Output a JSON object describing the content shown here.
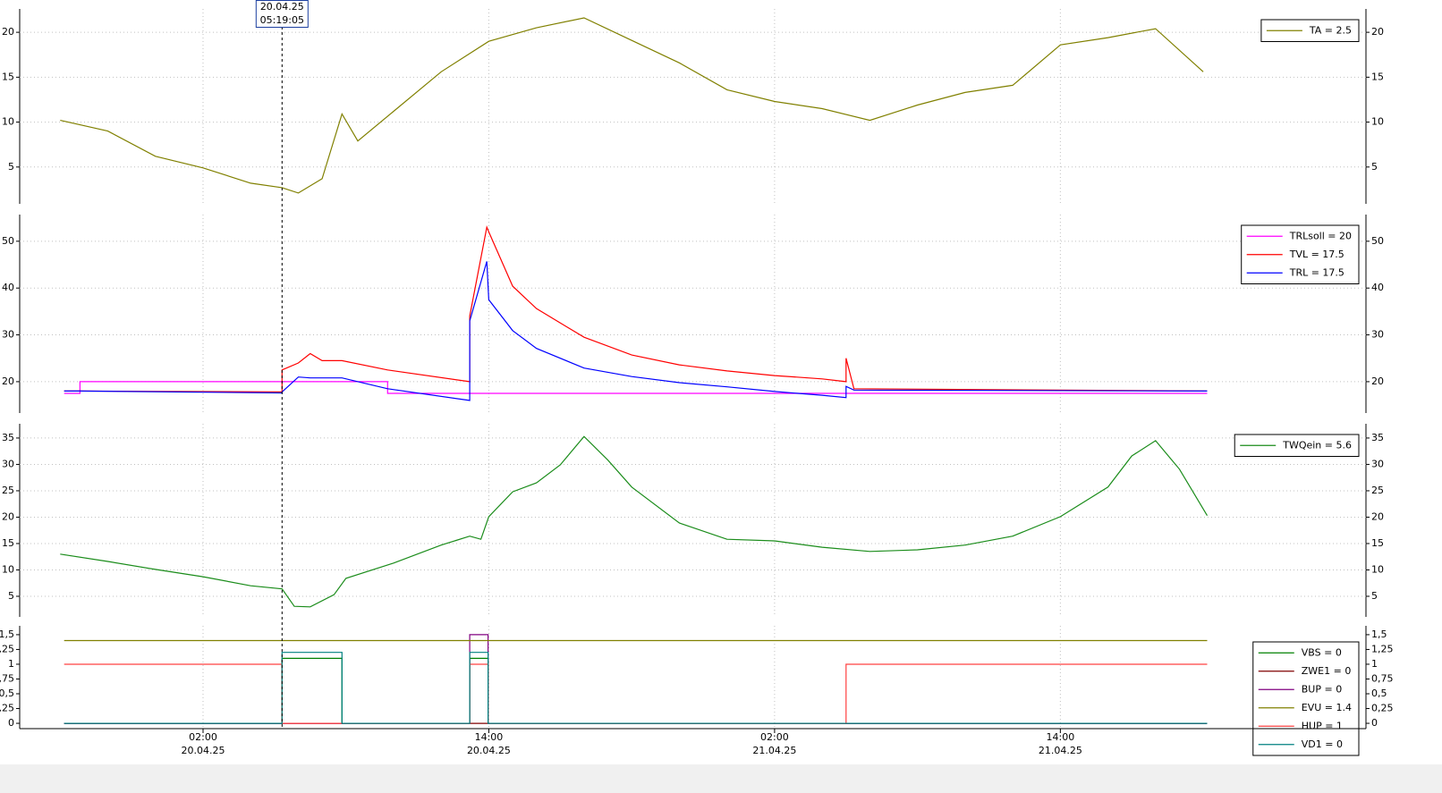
{
  "chart_data": [
    {
      "type": "line",
      "ylim": [
        0.9,
        22.6
      ],
      "yticks": [
        5,
        10,
        15,
        20
      ],
      "grid": true,
      "legend": "upper right",
      "x": [
        "2025-04-19T20:00",
        "2025-04-19T22:00",
        "2025-04-20T00:00",
        "2025-04-20T02:00",
        "2025-04-20T04:00",
        "2025-04-20T05:19",
        "2025-04-20T06:00",
        "2025-04-20T07:00",
        "2025-04-20T07:50",
        "2025-04-20T08:30",
        "2025-04-20T10:00",
        "2025-04-20T12:00",
        "2025-04-20T14:00",
        "2025-04-20T16:00",
        "2025-04-20T18:00",
        "2025-04-20T20:00",
        "2025-04-20T22:00",
        "2025-04-21T00:00",
        "2025-04-21T02:00",
        "2025-04-21T04:00",
        "2025-04-21T06:00",
        "2025-04-21T08:00",
        "2025-04-21T10:00",
        "2025-04-21T12:00",
        "2025-04-21T14:00",
        "2025-04-21T16:00",
        "2025-04-21T18:00",
        "2025-04-21T20:00"
      ],
      "series": [
        {
          "name": "TA = 2.5",
          "color": "#808000",
          "values": [
            10.2,
            9.0,
            6.2,
            4.9,
            3.2,
            2.7,
            2.1,
            3.7,
            10.9,
            7.9,
            11.2,
            15.6,
            19.0,
            20.5,
            21.6,
            19.1,
            16.6,
            13.6,
            12.3,
            11.5,
            10.2,
            11.9,
            13.3,
            14.1,
            18.6,
            19.4,
            20.4,
            15.6
          ]
        }
      ]
    },
    {
      "type": "line",
      "ylim": [
        13.3,
        55.7
      ],
      "yticks": [
        20,
        30,
        40,
        50
      ],
      "grid": true,
      "legend": "upper right",
      "x": [
        "2025-04-19T20:10",
        "2025-04-19T20:50",
        "2025-04-19T20:50",
        "2025-04-20T05:19",
        "2025-04-20T05:19",
        "2025-04-20T06:00",
        "2025-04-20T06:30",
        "2025-04-20T07:00",
        "2025-04-20T07:50",
        "2025-04-20T09:45",
        "2025-04-20T09:45",
        "2025-04-20T13:12",
        "2025-04-20T13:12",
        "2025-04-20T13:55",
        "2025-04-20T14:00",
        "2025-04-20T15:00",
        "2025-04-20T16:00",
        "2025-04-20T18:00",
        "2025-04-20T20:00",
        "2025-04-20T22:00",
        "2025-04-21T00:00",
        "2025-04-21T02:00",
        "2025-04-21T04:00",
        "2025-04-21T05:00",
        "2025-04-21T05:00",
        "2025-04-21T05:20",
        "2025-04-21T20:10"
      ],
      "series": [
        {
          "name": "TRLsoll = 20",
          "color": "#ff00ff",
          "values": [
            17.5,
            17.5,
            20,
            20,
            20,
            20,
            20,
            20,
            20,
            20,
            17.5,
            17.5,
            17.5,
            17.5,
            17.5,
            17.5,
            17.5,
            17.5,
            17.5,
            17.5,
            17.5,
            17.5,
            17.5,
            17.5,
            17.5,
            17.5,
            17.5
          ]
        },
        {
          "name": "TVL = 17.5",
          "color": "#ff0000",
          "values": [
            18,
            18,
            18,
            17.8,
            22.5,
            24,
            26,
            24.5,
            24.5,
            22.5,
            22.5,
            20,
            34,
            53,
            52,
            40.4,
            35.6,
            29.5,
            25.7,
            23.6,
            22.3,
            21.3,
            20.6,
            20,
            25,
            18.5,
            18
          ]
        },
        {
          "name": "TRL = 17.5",
          "color": "#0000ff",
          "values": [
            18,
            18,
            18,
            17.6,
            17.8,
            21,
            20.8,
            20.8,
            20.8,
            18.5,
            18.5,
            16,
            33,
            45.7,
            37.5,
            30.9,
            27.1,
            22.9,
            21.1,
            19.8,
            18.9,
            17.9,
            17.1,
            16.6,
            19,
            18.2,
            18
          ]
        }
      ]
    },
    {
      "type": "line",
      "ylim": [
        1.1,
        37.7
      ],
      "yticks": [
        5,
        10,
        15,
        20,
        25,
        30,
        35
      ],
      "grid": true,
      "legend": "upper right",
      "x": [
        "2025-04-19T20:00",
        "2025-04-19T22:00",
        "2025-04-20T00:00",
        "2025-04-20T02:00",
        "2025-04-20T04:00",
        "2025-04-20T05:19",
        "2025-04-20T05:50",
        "2025-04-20T06:30",
        "2025-04-20T07:30",
        "2025-04-20T08:00",
        "2025-04-20T10:00",
        "2025-04-20T12:00",
        "2025-04-20T13:12",
        "2025-04-20T13:40",
        "2025-04-20T14:00",
        "2025-04-20T15:00",
        "2025-04-20T16:00",
        "2025-04-20T17:00",
        "2025-04-20T18:00",
        "2025-04-20T19:00",
        "2025-04-20T20:00",
        "2025-04-20T22:00",
        "2025-04-21T00:00",
        "2025-04-21T02:00",
        "2025-04-21T04:00",
        "2025-04-21T06:00",
        "2025-04-21T08:00",
        "2025-04-21T10:00",
        "2025-04-21T12:00",
        "2025-04-21T14:00",
        "2025-04-21T16:00",
        "2025-04-21T17:00",
        "2025-04-21T18:00",
        "2025-04-21T19:00",
        "2025-04-21T20:10"
      ],
      "series": [
        {
          "name": "TWQein = 5.6",
          "color": "#1a8c1a",
          "values": [
            13.0,
            11.6,
            10.1,
            8.7,
            7.0,
            6.4,
            3.1,
            3.0,
            5.3,
            8.4,
            11.3,
            14.7,
            16.4,
            15.8,
            20.1,
            24.8,
            26.5,
            29.9,
            35.3,
            30.8,
            25.7,
            18.9,
            15.8,
            15.5,
            14.3,
            13.5,
            13.8,
            14.7,
            16.4,
            20.1,
            25.7,
            31.6,
            34.5,
            29.1,
            20.3
          ]
        }
      ]
    },
    {
      "type": "line",
      "ylim": [
        -0.09,
        1.65
      ],
      "yticks": [
        {
          "value": 0,
          "label": "0"
        },
        {
          "value": 0.25,
          "label": "0,25"
        },
        {
          "value": 0.5,
          "label": "0,5"
        },
        {
          "value": 0.75,
          "label": "0,75"
        },
        {
          "value": 1,
          "label": "1"
        },
        {
          "value": 1.25,
          "label": "1,25"
        },
        {
          "value": 1.5,
          "label": "1,5"
        }
      ],
      "grid": false,
      "legend": "lower right",
      "xlim": [
        "2025-04-19T18:18",
        "2025-04-22T02:50"
      ],
      "xticks": [
        {
          "value": "2025-04-20T02:00",
          "label": [
            "02:00",
            "20.04.25"
          ]
        },
        {
          "value": "2025-04-20T14:00",
          "label": [
            "14:00",
            "20.04.25"
          ]
        },
        {
          "value": "2025-04-21T02:00",
          "label": [
            "02:00",
            "21.04.25"
          ]
        },
        {
          "value": "2025-04-21T14:00",
          "label": [
            "14:00",
            "21.04.25"
          ]
        }
      ],
      "x": [
        "2025-04-19T20:10",
        "2025-04-20T05:19",
        "2025-04-20T05:19",
        "2025-04-20T07:50",
        "2025-04-20T07:50",
        "2025-04-20T13:12",
        "2025-04-20T13:12",
        "2025-04-20T13:58",
        "2025-04-20T13:58",
        "2025-04-21T05:00",
        "2025-04-21T05:00",
        "2025-04-21T20:10"
      ],
      "series": [
        {
          "name": "VBS = 0",
          "color": "#008000",
          "values": [
            0,
            0,
            1.1,
            1.1,
            0,
            0,
            1.1,
            1.1,
            0,
            0,
            0,
            0
          ]
        },
        {
          "name": "ZWE1 = 0",
          "color": "#800000",
          "values": [
            0,
            0,
            0,
            0,
            0,
            0,
            0,
            0,
            0,
            0,
            0,
            0
          ]
        },
        {
          "name": "BUP = 0",
          "color": "#800080",
          "values": [
            0,
            0,
            0,
            0,
            0,
            0,
            1.5,
            1.5,
            0,
            0,
            0,
            0
          ]
        },
        {
          "name": "EVU = 1.4",
          "color": "#808000",
          "values": [
            1.4,
            1.4,
            1.4,
            1.4,
            1.4,
            1.4,
            1.4,
            1.4,
            1.4,
            1.4,
            1.4,
            1.4
          ]
        },
        {
          "name": "HUP = 1",
          "color": "#ff4040",
          "values": [
            1,
            1,
            0,
            0,
            0,
            0,
            1,
            1,
            0,
            0,
            1,
            1
          ]
        },
        {
          "name": "VD1 = 0",
          "color": "#008080",
          "values": [
            0,
            0,
            1.2,
            1.2,
            0,
            0,
            1.2,
            1.2,
            0,
            0,
            0,
            0
          ]
        }
      ]
    }
  ],
  "cursor": {
    "value": "2025-04-20T05:19:05",
    "label": [
      "20.04.25",
      "05:19:05"
    ]
  }
}
